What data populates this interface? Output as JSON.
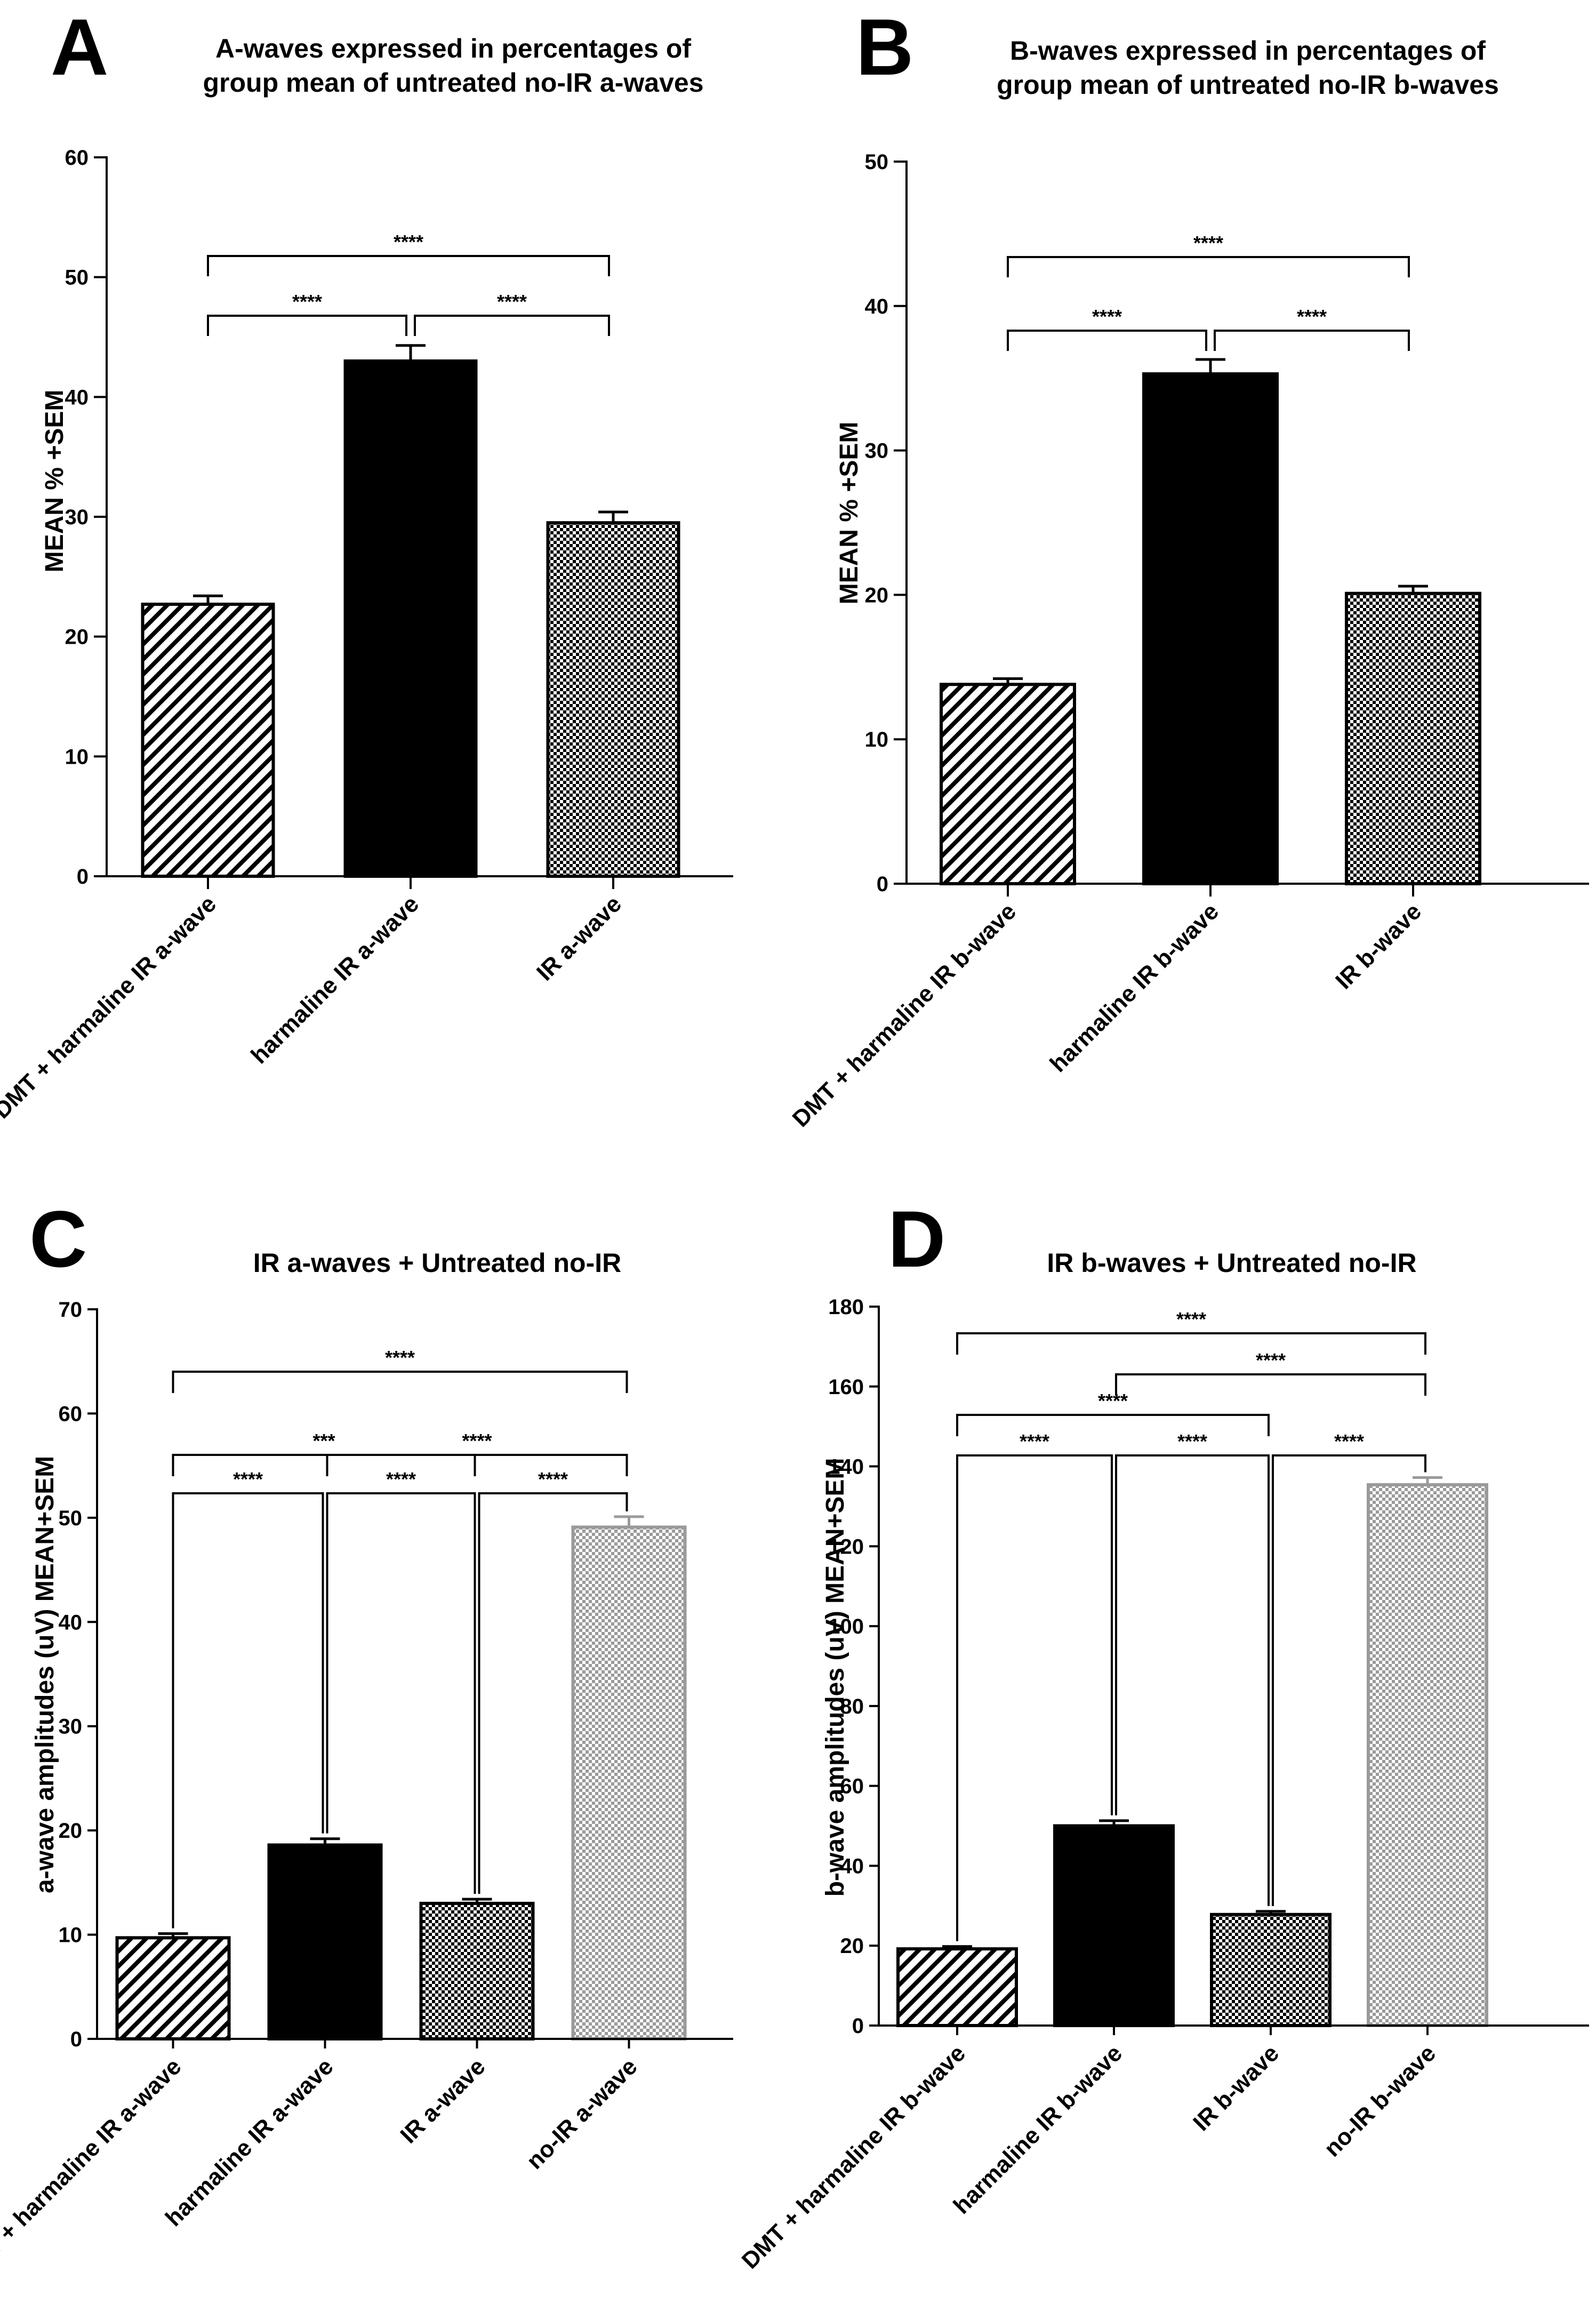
{
  "panels": [
    {
      "letter": "A",
      "title_lines": [
        "A-waves expressed in percentages of",
        "group mean of untreated no-IR a-waves"
      ]
    },
    {
      "letter": "B",
      "title_lines": [
        "B-waves expressed in percentages of",
        "group mean of untreated no-IR b-waves"
      ]
    },
    {
      "letter": "C",
      "title_lines": [
        "IR a-waves + Untreated no-IR"
      ]
    },
    {
      "letter": "D",
      "title_lines": [
        "IR b-waves + Untreated no-IR"
      ]
    }
  ],
  "colors": {
    "bar_black": "#000000",
    "hatch_line": "#000000",
    "checker_dark": "#000000",
    "checker_light_bar": "#9a9a9a",
    "bracket": "#000000"
  },
  "chart_data": [
    {
      "panel": "A",
      "type": "bar",
      "title": "A-waves expressed in percentages of group mean of untreated no-IR a-waves",
      "ylabel": "MEAN % +SEM",
      "xlabel": "",
      "ylim": [
        0,
        60
      ],
      "yticks": [
        0,
        10,
        20,
        30,
        40,
        50,
        60
      ],
      "categories": [
        "DMT + harmaline IR a-wave",
        "harmaline IR a-wave",
        "IR a-wave"
      ],
      "values": [
        22.7,
        43.0,
        29.5
      ],
      "sem": [
        0.7,
        1.3,
        0.9
      ],
      "fills": [
        "diag",
        "solid",
        "checker"
      ],
      "comparisons": [
        {
          "from": 0,
          "to": 2,
          "label": "****"
        },
        {
          "from": 0,
          "to": 1,
          "label": "****"
        },
        {
          "from": 1,
          "to": 2,
          "label": "****"
        }
      ]
    },
    {
      "panel": "B",
      "type": "bar",
      "title": "B-waves expressed in percentages of group mean of untreated no-IR b-waves",
      "ylabel": "MEAN % +SEM",
      "xlabel": "",
      "ylim": [
        0,
        50
      ],
      "yticks": [
        0,
        10,
        20,
        30,
        40,
        50
      ],
      "categories": [
        "DMT + harmaline IR b-wave",
        "harmaline IR b-wave",
        "IR b-wave"
      ],
      "values": [
        13.8,
        35.3,
        20.1
      ],
      "sem": [
        0.4,
        1.0,
        0.5
      ],
      "fills": [
        "diag",
        "solid",
        "checker"
      ],
      "comparisons": [
        {
          "from": 0,
          "to": 2,
          "label": "****"
        },
        {
          "from": 0,
          "to": 1,
          "label": "****"
        },
        {
          "from": 1,
          "to": 2,
          "label": "****"
        }
      ]
    },
    {
      "panel": "C",
      "type": "bar",
      "title": "IR a-waves + Untreated no-IR",
      "ylabel": "a-wave amplitudes (uV) MEAN+SEM",
      "xlabel": "",
      "ylim": [
        0,
        70
      ],
      "yticks": [
        0,
        10,
        20,
        30,
        40,
        50,
        60,
        70
      ],
      "categories": [
        "DMT + harmaline IR a-wave",
        "harmaline IR a-wave",
        "IR a-wave",
        "no-IR a-wave"
      ],
      "values": [
        9.7,
        18.6,
        13.0,
        49.1
      ],
      "sem": [
        0.4,
        0.6,
        0.4,
        1.0
      ],
      "fills": [
        "diag",
        "solid",
        "checker",
        "checker-light"
      ],
      "comparisons": [
        {
          "from": 0,
          "to": 3,
          "label": "****"
        },
        {
          "from": 1,
          "to": 3,
          "label": "****"
        },
        {
          "from": 0,
          "to": 2,
          "label": "***"
        },
        {
          "from": 0,
          "to": 1,
          "label": "****"
        },
        {
          "from": 1,
          "to": 2,
          "label": "****"
        },
        {
          "from": 2,
          "to": 3,
          "label": "****"
        }
      ]
    },
    {
      "panel": "D",
      "type": "bar",
      "title": "IR b-waves + Untreated no-IR",
      "ylabel": "b-wave amplitudes (uV) MEAN+SEM",
      "xlabel": "",
      "ylim": [
        0,
        180
      ],
      "yticks": [
        0,
        20,
        40,
        60,
        80,
        100,
        120,
        140,
        160,
        180
      ],
      "categories": [
        "DMT + harmaline IR b-wave",
        "harmaline IR b-wave",
        "IR b-wave",
        "no-IR b-wave"
      ],
      "values": [
        19.2,
        50.0,
        27.8,
        135.4
      ],
      "sem": [
        0.6,
        1.3,
        0.8,
        1.8
      ],
      "fills": [
        "diag",
        "solid",
        "checker",
        "checker-light"
      ],
      "comparisons": [
        {
          "from": 0,
          "to": 3,
          "label": "****"
        },
        {
          "from": 1,
          "to": 3,
          "label": "****"
        },
        {
          "from": 0,
          "to": 2,
          "label": "****"
        },
        {
          "from": 0,
          "to": 1,
          "label": "****"
        },
        {
          "from": 1,
          "to": 2,
          "label": "****"
        },
        {
          "from": 2,
          "to": 3,
          "label": "****"
        }
      ]
    }
  ]
}
